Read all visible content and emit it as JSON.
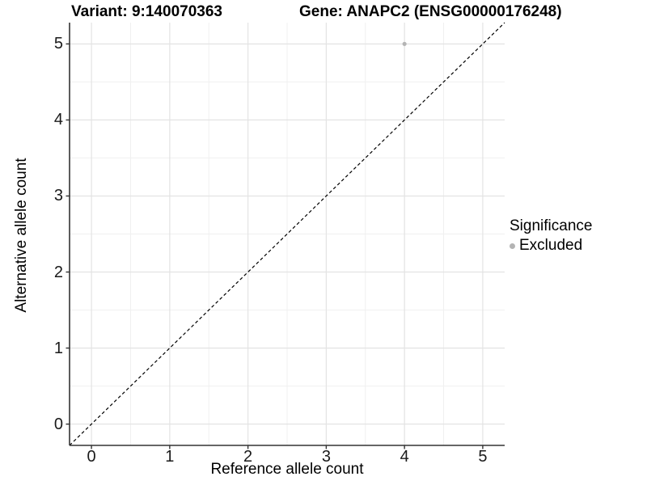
{
  "figure": {
    "title_left": "Variant: 9:140070363",
    "title_right": "Gene: ANAPC2 (ENSG00000176248)"
  },
  "chart_data": {
    "type": "scatter",
    "title": "Variant: 9:140070363 / Gene: ANAPC2 (ENSG00000176248)",
    "xlabel": "Reference allele count",
    "ylabel": "Alternative allele count",
    "xlim": [
      -0.28,
      5.28
    ],
    "ylim": [
      -0.28,
      5.28
    ],
    "x_ticks": [
      0,
      1,
      2,
      3,
      4,
      5
    ],
    "y_ticks": [
      0,
      1,
      2,
      3,
      4,
      5
    ],
    "x_minor_ticks": [
      0.5,
      1.5,
      2.5,
      3.5,
      4.5
    ],
    "y_minor_ticks": [
      0.5,
      1.5,
      2.5,
      3.5,
      4.5
    ],
    "grid": true,
    "series": [
      {
        "name": "Excluded",
        "color": "#b4b4b4",
        "points": [
          {
            "x": 4,
            "y": 5
          }
        ]
      }
    ],
    "reference_line": {
      "type": "identity",
      "equation": "y = x",
      "style": "dashed",
      "color": "#000000"
    },
    "legend": {
      "title": "Significance",
      "position": "right",
      "items": [
        {
          "label": "Excluded",
          "color": "#b4b4b4"
        }
      ]
    }
  },
  "style_colors": {
    "background": "#ffffff",
    "major_grid": "#e3e3e3",
    "minor_grid": "#f0f0f0",
    "axis_line": "#333333",
    "tick_mark": "#333333",
    "text": "#000000",
    "point_gray": "#b4b4b4"
  }
}
